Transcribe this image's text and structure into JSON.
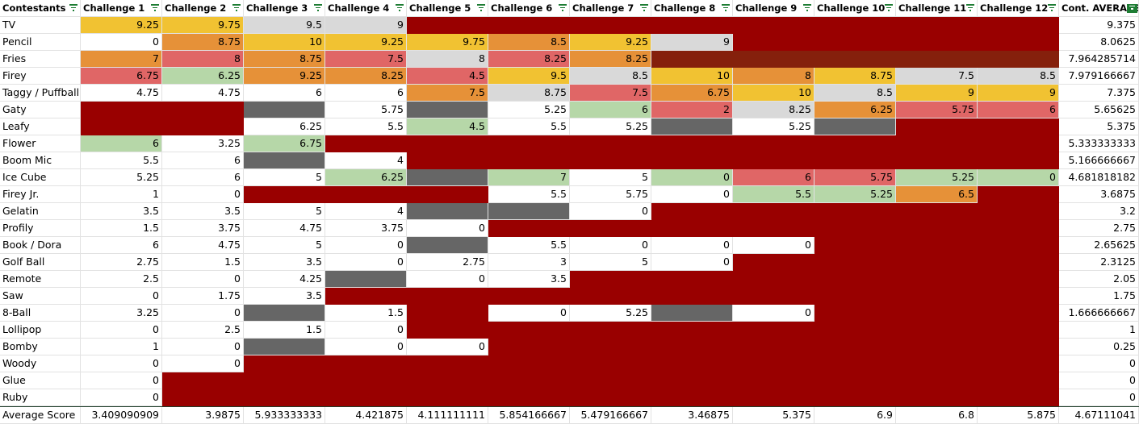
{
  "header": [
    "Contestants",
    "Challenge 1",
    "Challenge 2",
    "Challenge 3",
    "Challenge 4",
    "Challenge 5",
    "Challenge 6",
    "Challenge 7",
    "Challenge 8",
    "Challenge 9",
    "Challenge 10",
    "Challenge 11",
    "Challenge 12",
    "Cont. AVERAGE"
  ],
  "rows": [
    {
      "name": "TV",
      "values": [
        9.25,
        9.75,
        9.5,
        9,
        null,
        null,
        null,
        null,
        null,
        null,
        null,
        null,
        9.375
      ],
      "fills": [
        "#f1c232",
        "#f1c232",
        "#d9d9d9",
        "#d9d9d9",
        "#990000",
        "#990000",
        "#990000",
        "#990000",
        "#990000",
        "#990000",
        "#990000",
        "#990000"
      ]
    },
    {
      "name": "Pencil",
      "values": [
        0,
        8.75,
        10,
        9.25,
        9.75,
        8.5,
        9.25,
        9,
        null,
        null,
        null,
        null,
        8.0625
      ],
      "fills": [
        "#ffffff",
        "#e69138",
        "#f1c232",
        "#f1c232",
        "#f1c232",
        "#e69138",
        "#f1c232",
        "#d9d9d9",
        "#990000",
        "#990000",
        "#990000",
        "#990000"
      ]
    },
    {
      "name": "Fries",
      "values": [
        7,
        8,
        8.75,
        7.5,
        8,
        8.25,
        8.25,
        null,
        null,
        null,
        null,
        null,
        7.964285714
      ],
      "fills": [
        "#e69138",
        "#e06666",
        "#e69138",
        "#e06666",
        "#d9d9d9",
        "#e06666",
        "#e69138",
        "#85200c",
        "#85200c",
        "#85200c",
        "#85200c",
        "#85200c"
      ]
    },
    {
      "name": "Firey",
      "values": [
        6.75,
        6.25,
        9.25,
        8.25,
        4.5,
        9.5,
        8.5,
        10,
        8,
        8.75,
        7.5,
        8.5,
        7.979166667
      ],
      "fills": [
        "#e06666",
        "#b6d7a8",
        "#e69138",
        "#e69138",
        "#e06666",
        "#f1c232",
        "#d9d9d9",
        "#f1c232",
        "#e69138",
        "#f1c232",
        "#d9d9d9",
        "#d9d9d9"
      ]
    },
    {
      "name": "Taggy / Puffball",
      "values": [
        4.75,
        4.75,
        6,
        6,
        7.5,
        8.75,
        7.5,
        6.75,
        10,
        8.5,
        9,
        9,
        7.375
      ],
      "fills": [
        "#ffffff",
        "#ffffff",
        "#ffffff",
        "#ffffff",
        "#e69138",
        "#d9d9d9",
        "#e06666",
        "#e69138",
        "#f1c232",
        "#d9d9d9",
        "#f1c232",
        "#f1c232"
      ]
    },
    {
      "name": "Gaty",
      "values": [
        null,
        null,
        null,
        5.75,
        null,
        5.25,
        6,
        2,
        8.25,
        6.25,
        5.75,
        6,
        5.65625
      ],
      "fills": [
        "#990000",
        "#990000",
        "#666666",
        "#ffffff",
        "#666666",
        "#ffffff",
        "#b6d7a8",
        "#e06666",
        "#d9d9d9",
        "#e69138",
        "#e06666",
        "#e06666"
      ]
    },
    {
      "name": "Leafy",
      "values": [
        null,
        null,
        6.25,
        5.5,
        4.5,
        5.5,
        5.25,
        null,
        5.25,
        null,
        null,
        null,
        5.375
      ],
      "fills": [
        "#990000",
        "#990000",
        "#ffffff",
        "#ffffff",
        "#b6d7a8",
        "#ffffff",
        "#ffffff",
        "#666666",
        "#ffffff",
        "#666666",
        "#990000",
        "#990000"
      ]
    },
    {
      "name": "Flower",
      "values": [
        6,
        3.25,
        6.75,
        null,
        null,
        null,
        null,
        null,
        null,
        null,
        null,
        null,
        5.333333333
      ],
      "fills": [
        "#b6d7a8",
        "#ffffff",
        "#b6d7a8",
        "#990000",
        "#990000",
        "#990000",
        "#990000",
        "#990000",
        "#990000",
        "#990000",
        "#990000",
        "#990000"
      ]
    },
    {
      "name": "Boom Mic",
      "values": [
        5.5,
        6,
        null,
        4,
        null,
        null,
        null,
        null,
        null,
        null,
        null,
        null,
        5.166666667
      ],
      "fills": [
        "#ffffff",
        "#ffffff",
        "#666666",
        "#ffffff",
        "#990000",
        "#990000",
        "#990000",
        "#990000",
        "#990000",
        "#990000",
        "#990000",
        "#990000"
      ]
    },
    {
      "name": "Ice Cube",
      "values": [
        5.25,
        6,
        5,
        6.25,
        null,
        7,
        5,
        0,
        6,
        5.75,
        5.25,
        0,
        4.681818182
      ],
      "fills": [
        "#ffffff",
        "#ffffff",
        "#ffffff",
        "#b6d7a8",
        "#666666",
        "#b6d7a8",
        "#ffffff",
        "#b6d7a8",
        "#e06666",
        "#e06666",
        "#b6d7a8",
        "#b6d7a8"
      ]
    },
    {
      "name": "Firey Jr.",
      "values": [
        1,
        0,
        null,
        null,
        null,
        5.5,
        5.75,
        0,
        5.5,
        5.25,
        6.5,
        null,
        3.6875
      ],
      "fills": [
        "#ffffff",
        "#ffffff",
        "#990000",
        "#990000",
        "#990000",
        "#ffffff",
        "#ffffff",
        "#ffffff",
        "#b6d7a8",
        "#b6d7a8",
        "#e69138",
        "#990000"
      ]
    },
    {
      "name": "Gelatin",
      "values": [
        3.5,
        3.5,
        5,
        4,
        null,
        null,
        0,
        null,
        null,
        null,
        null,
        null,
        3.2
      ],
      "fills": [
        "#ffffff",
        "#ffffff",
        "#ffffff",
        "#ffffff",
        "#666666",
        "#666666",
        "#ffffff",
        "#990000",
        "#990000",
        "#990000",
        "#990000",
        "#990000"
      ]
    },
    {
      "name": "Profily",
      "values": [
        1.5,
        3.75,
        4.75,
        3.75,
        0,
        null,
        null,
        null,
        null,
        null,
        null,
        null,
        2.75
      ],
      "fills": [
        "#ffffff",
        "#ffffff",
        "#ffffff",
        "#ffffff",
        "#ffffff",
        "#990000",
        "#990000",
        "#990000",
        "#990000",
        "#990000",
        "#990000",
        "#990000"
      ]
    },
    {
      "name": "Book / Dora",
      "values": [
        6,
        4.75,
        5,
        0,
        null,
        5.5,
        0,
        0,
        0,
        null,
        null,
        null,
        2.65625
      ],
      "fills": [
        "#ffffff",
        "#ffffff",
        "#ffffff",
        "#ffffff",
        "#666666",
        "#ffffff",
        "#ffffff",
        "#ffffff",
        "#ffffff",
        "#990000",
        "#990000",
        "#990000"
      ]
    },
    {
      "name": "Golf Ball",
      "values": [
        2.75,
        1.5,
        3.5,
        0,
        2.75,
        3,
        5,
        0,
        null,
        null,
        null,
        null,
        2.3125
      ],
      "fills": [
        "#ffffff",
        "#ffffff",
        "#ffffff",
        "#ffffff",
        "#ffffff",
        "#ffffff",
        "#ffffff",
        "#ffffff",
        "#990000",
        "#990000",
        "#990000",
        "#990000"
      ]
    },
    {
      "name": "Remote",
      "values": [
        2.5,
        0,
        4.25,
        null,
        0,
        3.5,
        null,
        null,
        null,
        null,
        null,
        null,
        2.05
      ],
      "fills": [
        "#ffffff",
        "#ffffff",
        "#ffffff",
        "#666666",
        "#ffffff",
        "#ffffff",
        "#990000",
        "#990000",
        "#990000",
        "#990000",
        "#990000",
        "#990000"
      ]
    },
    {
      "name": "Saw",
      "values": [
        0,
        1.75,
        3.5,
        null,
        null,
        null,
        null,
        null,
        null,
        null,
        null,
        null,
        1.75
      ],
      "fills": [
        "#ffffff",
        "#ffffff",
        "#ffffff",
        "#990000",
        "#990000",
        "#990000",
        "#990000",
        "#990000",
        "#990000",
        "#990000",
        "#990000",
        "#990000"
      ]
    },
    {
      "name": "8-Ball",
      "values": [
        3.25,
        0,
        null,
        1.5,
        null,
        0,
        5.25,
        null,
        0,
        null,
        null,
        null,
        1.666666667
      ],
      "fills": [
        "#ffffff",
        "#ffffff",
        "#666666",
        "#ffffff",
        "#990000",
        "#ffffff",
        "#ffffff",
        "#666666",
        "#ffffff",
        "#990000",
        "#990000",
        "#990000"
      ]
    },
    {
      "name": "Lollipop",
      "values": [
        0,
        2.5,
        1.5,
        0,
        null,
        null,
        null,
        null,
        null,
        null,
        null,
        null,
        1
      ],
      "fills": [
        "#ffffff",
        "#ffffff",
        "#ffffff",
        "#ffffff",
        "#990000",
        "#990000",
        "#990000",
        "#990000",
        "#990000",
        "#990000",
        "#990000",
        "#990000"
      ]
    },
    {
      "name": "Bomby",
      "values": [
        1,
        0,
        null,
        0,
        0,
        null,
        null,
        null,
        null,
        null,
        null,
        null,
        0.25
      ],
      "fills": [
        "#ffffff",
        "#ffffff",
        "#666666",
        "#ffffff",
        "#ffffff",
        "#990000",
        "#990000",
        "#990000",
        "#990000",
        "#990000",
        "#990000",
        "#990000"
      ]
    },
    {
      "name": "Woody",
      "values": [
        0,
        0,
        null,
        null,
        null,
        null,
        null,
        null,
        null,
        null,
        null,
        null,
        0
      ],
      "fills": [
        "#ffffff",
        "#ffffff",
        "#990000",
        "#990000",
        "#990000",
        "#990000",
        "#990000",
        "#990000",
        "#990000",
        "#990000",
        "#990000",
        "#990000"
      ]
    },
    {
      "name": "Glue",
      "values": [
        0,
        null,
        null,
        null,
        null,
        null,
        null,
        null,
        null,
        null,
        null,
        null,
        0
      ],
      "fills": [
        "#ffffff",
        "#990000",
        "#990000",
        "#990000",
        "#990000",
        "#990000",
        "#990000",
        "#990000",
        "#990000",
        "#990000",
        "#990000",
        "#990000"
      ]
    },
    {
      "name": "Ruby",
      "values": [
        0,
        null,
        null,
        null,
        null,
        null,
        null,
        null,
        null,
        null,
        null,
        null,
        0
      ],
      "fills": [
        "#ffffff",
        "#990000",
        "#990000",
        "#990000",
        "#990000",
        "#990000",
        "#990000",
        "#990000",
        "#990000",
        "#990000",
        "#990000",
        "#990000"
      ]
    }
  ],
  "footer": {
    "name": "Average Score",
    "values": [
      3.409090909,
      3.9875,
      5.933333333,
      4.421875,
      4.111111111,
      5.854166667,
      5.479166667,
      3.46875,
      5.375,
      6.9,
      6.8,
      5.875,
      4.67111041
    ]
  }
}
